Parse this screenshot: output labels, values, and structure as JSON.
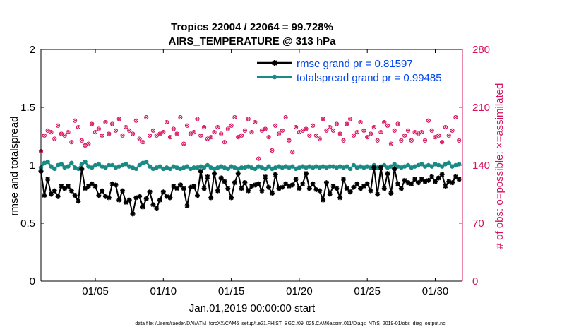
{
  "chart_data": {
    "type": "line",
    "title_line1": "Tropics 22004 / 22064 = 99.728%",
    "title_line2": "AIRS_TEMPERATURE @ 313 hPa",
    "xlabel": "Jan.01,2019 00:00:00 start",
    "ylabel_left": "rmse and totalspread",
    "ylabel_right": "# of obs: o=possible; ×=assimilated",
    "xlim": [
      1.0,
      32.0
    ],
    "ylim_left": [
      0,
      2
    ],
    "ylim_right": [
      0,
      280
    ],
    "xticks": [
      5,
      10,
      15,
      20,
      25,
      30
    ],
    "xtick_labels": [
      "01/05",
      "01/10",
      "01/15",
      "01/20",
      "01/25",
      "01/30"
    ],
    "yticks_left": [
      0,
      0.5,
      1,
      1.5,
      2
    ],
    "ytick_labels_left": [
      "0",
      "0.5",
      "1",
      "1.5",
      "2"
    ],
    "yticks_right": [
      0,
      70,
      140,
      210,
      280
    ],
    "ytick_labels_right": [
      "0",
      "70",
      "140",
      "210",
      "280"
    ],
    "legend": [
      {
        "label": "rmse grand pr = 0.81597",
        "color": "#000000"
      },
      {
        "label": "totalspread grand pr = 0.99485",
        "color": "#1a8a85"
      }
    ],
    "footer": "data file: /Users/raeder/DAI/ATM_forcXX/CAM6_setup/f.e21.FHIST_BGC.f09_025.CAM6assim.011/Diags_NTrS_2019-01/obs_diag_output.nc",
    "colors": {
      "rmse": "#000000",
      "spread": "#1a8a85",
      "obs": "#d6125e",
      "legend_text": "#0044ee"
    },
    "x": [
      1.0,
      1.25,
      1.5,
      1.75,
      2.0,
      2.25,
      2.5,
      2.75,
      3.0,
      3.25,
      3.5,
      3.75,
      4.0,
      4.25,
      4.5,
      4.75,
      5.0,
      5.25,
      5.5,
      5.75,
      6.0,
      6.25,
      6.5,
      6.75,
      7.0,
      7.25,
      7.5,
      7.75,
      8.0,
      8.25,
      8.5,
      8.75,
      9.0,
      9.25,
      9.5,
      9.75,
      10.0,
      10.25,
      10.5,
      10.75,
      11.0,
      11.25,
      11.5,
      11.75,
      12.0,
      12.25,
      12.5,
      12.75,
      13.0,
      13.25,
      13.5,
      13.75,
      14.0,
      14.25,
      14.5,
      14.75,
      15.0,
      15.25,
      15.5,
      15.75,
      16.0,
      16.25,
      16.5,
      16.75,
      17.0,
      17.25,
      17.5,
      17.75,
      18.0,
      18.25,
      18.5,
      18.75,
      19.0,
      19.25,
      19.5,
      19.75,
      20.0,
      20.25,
      20.5,
      20.75,
      21.0,
      21.25,
      21.5,
      21.75,
      22.0,
      22.25,
      22.5,
      22.75,
      23.0,
      23.25,
      23.5,
      23.75,
      24.0,
      24.25,
      24.5,
      24.75,
      25.0,
      25.25,
      25.5,
      25.75,
      26.0,
      26.25,
      26.5,
      26.75,
      27.0,
      27.25,
      27.5,
      27.75,
      28.0,
      28.25,
      28.5,
      28.75,
      29.0,
      29.25,
      29.5,
      29.75,
      30.0,
      30.25,
      30.5,
      30.75,
      31.0,
      31.25,
      31.5,
      31.75
    ],
    "rmse": [
      0.95,
      0.74,
      0.88,
      0.75,
      0.78,
      0.73,
      0.82,
      0.8,
      0.82,
      0.78,
      0.74,
      0.69,
      0.97,
      0.8,
      0.82,
      0.84,
      0.82,
      0.74,
      0.78,
      0.73,
      0.72,
      0.84,
      0.83,
      0.7,
      0.78,
      0.68,
      0.7,
      0.58,
      0.72,
      0.73,
      0.64,
      0.71,
      0.77,
      0.66,
      0.63,
      0.7,
      0.77,
      0.73,
      0.72,
      0.82,
      0.8,
      0.83,
      0.8,
      0.65,
      0.81,
      0.82,
      0.74,
      0.95,
      0.8,
      0.9,
      0.72,
      0.93,
      0.78,
      0.89,
      0.86,
      0.8,
      0.72,
      0.85,
      0.93,
      0.8,
      0.85,
      0.78,
      0.82,
      0.83,
      0.84,
      0.78,
      0.9,
      0.81,
      0.76,
      0.92,
      0.8,
      0.81,
      0.84,
      0.82,
      0.83,
      0.88,
      0.8,
      0.84,
      0.93,
      0.8,
      0.84,
      0.79,
      0.78,
      0.7,
      0.85,
      0.75,
      0.82,
      0.8,
      0.72,
      0.88,
      0.8,
      0.77,
      0.81,
      0.84,
      0.8,
      0.82,
      0.84,
      0.78,
      0.98,
      0.75,
      0.98,
      0.8,
      0.93,
      0.76,
      0.97,
      0.84,
      0.8,
      0.87,
      0.85,
      0.84,
      0.88,
      0.85,
      0.88,
      0.86,
      0.87,
      0.9,
      0.86,
      0.89,
      0.92,
      0.82,
      0.86,
      0.85,
      0.9,
      0.88,
      0.92,
      0.88
    ],
    "spread": [
      0.98,
      1.02,
      1.03,
      0.99,
      0.97,
      1.0,
      1.01,
      0.98,
      0.99,
      1.02,
      0.98,
      0.97,
      1.01,
      1.03,
      0.99,
      0.98,
      1.0,
      1.01,
      0.99,
      0.98,
      1.0,
      1.0,
      0.98,
      0.99,
      1.0,
      1.01,
      0.99,
      0.98,
      0.97,
      1.0,
      1.02,
      1.03,
      0.99,
      0.97,
      0.98,
      0.99,
      0.97,
      0.98,
      0.97,
      0.99,
      0.98,
      0.97,
      0.98,
      0.99,
      0.97,
      0.98,
      0.98,
      0.99,
      0.98,
      1.0,
      0.98,
      0.97,
      0.98,
      0.99,
      0.98,
      0.97,
      0.99,
      0.98,
      0.97,
      0.98,
      0.98,
      0.99,
      0.98,
      0.97,
      0.99,
      0.98,
      0.97,
      0.99,
      0.97,
      0.98,
      0.99,
      0.98,
      0.99,
      0.98,
      0.99,
      0.97,
      0.98,
      0.99,
      0.98,
      0.99,
      0.98,
      0.99,
      0.98,
      0.99,
      0.98,
      0.99,
      0.99,
      0.98,
      0.99,
      0.98,
      0.99,
      0.97,
      1.0,
      0.98,
      0.99,
      0.98,
      0.99,
      0.98,
      1.0,
      0.98,
      0.99,
      1.0,
      0.98,
      0.99,
      1.01,
      0.99,
      0.98,
      0.99,
      1.0,
      0.98,
      0.99,
      1.0,
      1.01,
      0.99,
      1.0,
      0.99,
      1.01,
      1.0,
      0.99,
      1.01,
      1.02,
      0.99,
      1.0,
      1.01,
      1.0,
      0.98
    ],
    "obs_possible": [
      157,
      176,
      182,
      180,
      172,
      188,
      178,
      176,
      180,
      168,
      194,
      186,
      170,
      164,
      166,
      190,
      180,
      184,
      176,
      192,
      178,
      190,
      182,
      196,
      176,
      186,
      182,
      178,
      194,
      172,
      168,
      198,
      176,
      182,
      176,
      178,
      180,
      192,
      174,
      184,
      178,
      198,
      166,
      188,
      178,
      180,
      196,
      176,
      186,
      172,
      174,
      180,
      186,
      178,
      168,
      184,
      188,
      198,
      174,
      176,
      182,
      196,
      180,
      192,
      148,
      182,
      184,
      174,
      158,
      188,
      178,
      182,
      198,
      170,
      156,
      186,
      180,
      182,
      184,
      176,
      188,
      176,
      172,
      196,
      182,
      186,
      182,
      190,
      178,
      170,
      190,
      196,
      176,
      180,
      192,
      182,
      174,
      178,
      186,
      170,
      180,
      192,
      188,
      166,
      182,
      190,
      170,
      176,
      182,
      170,
      180,
      178,
      180,
      170,
      194,
      182,
      174,
      176,
      168,
      186,
      176,
      182,
      198,
      170,
      176,
      192
    ]
  }
}
